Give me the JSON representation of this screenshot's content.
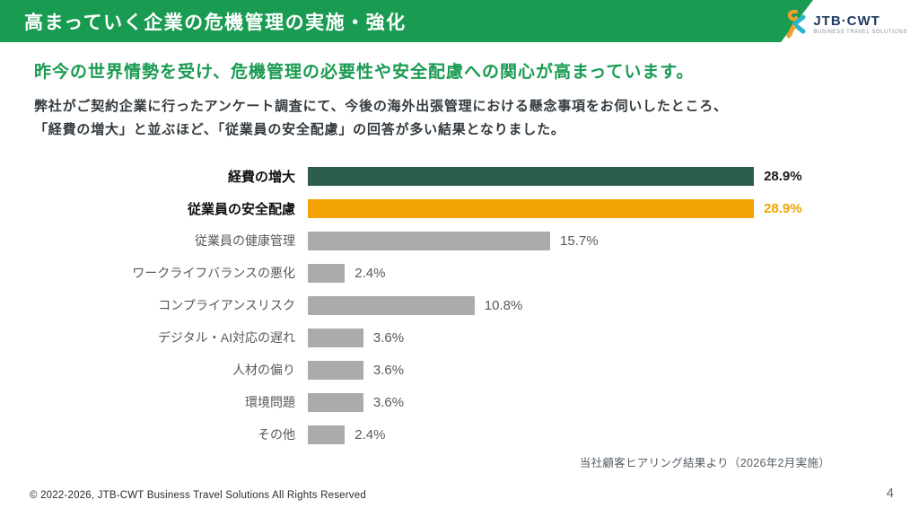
{
  "header": {
    "title": "高まっていく企業の危機管理の実施・強化",
    "logo": {
      "brand": "JTB·CWT",
      "tagline": "BUSINESS TRAVEL SOLUTIONS"
    }
  },
  "lead": {
    "headline": "昨今の世界情勢を受け、危機管理の必要性や安全配慮への関心が高まっています。",
    "body_line1": "弊社がご契約企業に行ったアンケート調査にて、今後の海外出張管理における懸念事項をお伺いしたところ、",
    "body_line2": "「経費の増大」と並ぶほど、「従業員の安全配慮」の回答が多い結果となりました。"
  },
  "chart_data": {
    "type": "bar",
    "orientation": "horizontal",
    "title": "",
    "xlabel": "",
    "ylabel": "",
    "xlim": [
      0,
      30
    ],
    "grid": false,
    "legend": false,
    "categories": [
      "経費の増大",
      "従業員の安全配慮",
      "従業員の健康管理",
      "ワークライフバランスの悪化",
      "コンプライアンスリスク",
      "デジタル・AI対応の遅れ",
      "人材の偏り",
      "環境問題",
      "その他"
    ],
    "values": [
      28.9,
      28.9,
      15.7,
      2.4,
      10.8,
      3.6,
      3.6,
      3.6,
      2.4
    ],
    "value_labels": [
      "28.9%",
      "28.9%",
      "15.7%",
      "2.4%",
      "10.8%",
      "3.6%",
      "3.6%",
      "3.6%",
      "2.4%"
    ],
    "bar_colors": [
      "#2d5e4c",
      "#f2a202",
      "#ababab",
      "#ababab",
      "#ababab",
      "#ababab",
      "#ababab",
      "#ababab",
      "#ababab"
    ],
    "value_styles": [
      "emph-dark",
      "emph-orange",
      "",
      "",
      "",
      "",
      "",
      "",
      ""
    ],
    "label_emphasis": [
      true,
      true,
      false,
      false,
      false,
      false,
      false,
      false,
      false
    ]
  },
  "source_note": "当社顧客ヒアリング結果より（2026年2月実施）",
  "footer": {
    "copyright": "© 2022-2026, JTB-CWT Business Travel Solutions All Rights Reserved",
    "page_number": "4"
  },
  "colors": {
    "banner_green": "#1a9b52",
    "headline_green": "#1a9b52",
    "bar_dark_green": "#2d5e4c",
    "bar_orange": "#f2a202",
    "bar_gray": "#ababab",
    "logo_navy": "#1d3a63",
    "logo_teal": "#2ab5c8",
    "logo_orange": "#f0a030"
  }
}
